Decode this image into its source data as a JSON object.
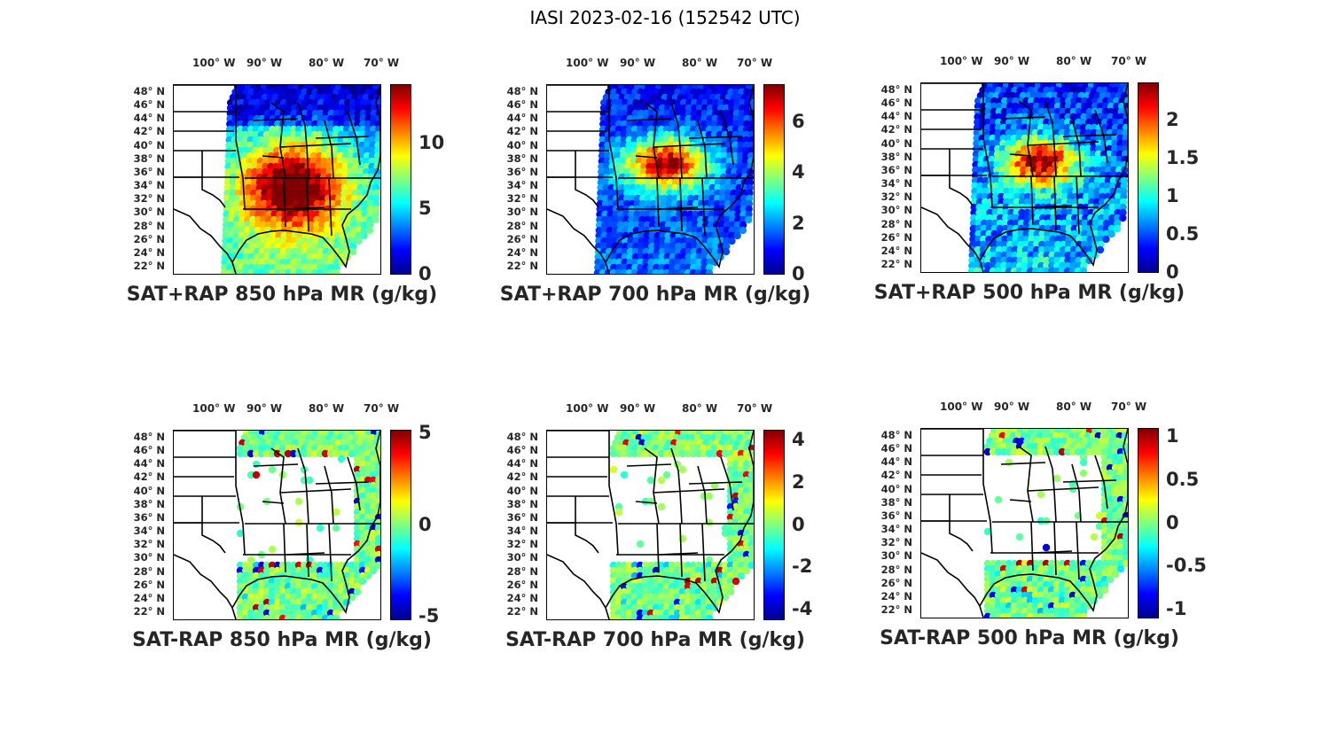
{
  "figure_title": "IASI 2023-02-16 (152542 UTC)",
  "colormap": [
    "#00008f",
    "#0000ff",
    "#0080ff",
    "#00ffff",
    "#80ff80",
    "#ffff00",
    "#ff8000",
    "#ff0000",
    "#800000"
  ],
  "chart_data": [
    {
      "type": "heatmap",
      "title": "SAT+RAP 850 hPa MR (g/kg)",
      "field": "total",
      "colorbar_range": [
        0,
        14.5
      ],
      "colorbar_ticks": [
        "0",
        "5",
        "10"
      ],
      "colorbar_tick_values": [
        0,
        5,
        10
      ],
      "lon_ticks": [
        "100° W",
        "90° W",
        "80° W",
        "70° W"
      ],
      "lat_ticks": [
        "48° N",
        "46° N",
        "44° N",
        "42° N",
        "40° N",
        "38° N",
        "36° N",
        "34° N",
        "32° N",
        "30° N",
        "28° N",
        "26° N",
        "24° N",
        "22° N"
      ],
      "peak_region": "southeast / gulf coast"
    },
    {
      "type": "heatmap",
      "title": "SAT+RAP 700 hPa MR (g/kg)",
      "field": "total",
      "colorbar_range": [
        0,
        7.5
      ],
      "colorbar_ticks": [
        "0",
        "2",
        "4",
        "6"
      ],
      "colorbar_tick_values": [
        0,
        2,
        4,
        6
      ],
      "lon_ticks": [
        "100° W",
        "90° W",
        "80° W",
        "70° W"
      ],
      "lat_ticks": [
        "48° N",
        "46° N",
        "44° N",
        "42° N",
        "40° N",
        "38° N",
        "36° N",
        "34° N",
        "32° N",
        "30° N",
        "28° N",
        "26° N",
        "24° N",
        "22° N"
      ],
      "peak_region": "ohio valley"
    },
    {
      "type": "heatmap",
      "title": "SAT+RAP 500 hPa MR (g/kg)",
      "field": "total",
      "colorbar_range": [
        0,
        2.5
      ],
      "colorbar_ticks": [
        "0",
        "0.5",
        "1",
        "1.5",
        "2"
      ],
      "colorbar_tick_values": [
        0,
        0.5,
        1,
        1.5,
        2
      ],
      "lon_ticks": [
        "100° W",
        "90° W",
        "80° W",
        "70° W"
      ],
      "lat_ticks": [
        "48° N",
        "46° N",
        "44° N",
        "42° N",
        "40° N",
        "38° N",
        "36° N",
        "34° N",
        "32° N",
        "30° N",
        "28° N",
        "26° N",
        "24° N",
        "22° N"
      ],
      "peak_region": "ohio valley"
    },
    {
      "type": "heatmap",
      "title": "SAT-RAP 850 hPa MR (g/kg)",
      "field": "difference",
      "colorbar_range": [
        -5.2,
        5.2
      ],
      "colorbar_ticks": [
        "-5",
        "0",
        "5"
      ],
      "colorbar_tick_values": [
        -5,
        0,
        5
      ],
      "lon_ticks": [
        "100° W",
        "90° W",
        "80° W",
        "70° W"
      ],
      "lat_ticks": [
        "48° N",
        "46° N",
        "44° N",
        "42° N",
        "40° N",
        "38° N",
        "36° N",
        "34° N",
        "32° N",
        "30° N",
        "28° N",
        "26° N",
        "24° N",
        "22° N"
      ]
    },
    {
      "type": "heatmap",
      "title": "SAT-RAP 700 hPa MR (g/kg)",
      "field": "difference",
      "colorbar_range": [
        -4.5,
        4.5
      ],
      "colorbar_ticks": [
        "-4",
        "-2",
        "0",
        "2",
        "4"
      ],
      "colorbar_tick_values": [
        -4,
        -2,
        0,
        2,
        4
      ],
      "lon_ticks": [
        "100° W",
        "90° W",
        "80° W",
        "70° W"
      ],
      "lat_ticks": [
        "48° N",
        "46° N",
        "44° N",
        "42° N",
        "40° N",
        "38° N",
        "36° N",
        "34° N",
        "32° N",
        "30° N",
        "28° N",
        "26° N",
        "24° N",
        "22° N"
      ]
    },
    {
      "type": "heatmap",
      "title": "SAT-RAP 500 hPa MR (g/kg)",
      "field": "difference",
      "colorbar_range": [
        -1.1,
        1.1
      ],
      "colorbar_ticks": [
        "-1",
        "-0.5",
        "0",
        "0.5",
        "1"
      ],
      "colorbar_tick_values": [
        -1,
        -0.5,
        0,
        0.5,
        1
      ],
      "lon_ticks": [
        "100° W",
        "90° W",
        "80° W",
        "70° W"
      ],
      "lat_ticks": [
        "48° N",
        "46° N",
        "44° N",
        "42° N",
        "40° N",
        "38° N",
        "36° N",
        "34° N",
        "32° N",
        "30° N",
        "28° N",
        "26° N",
        "24° N",
        "22° N"
      ]
    }
  ]
}
